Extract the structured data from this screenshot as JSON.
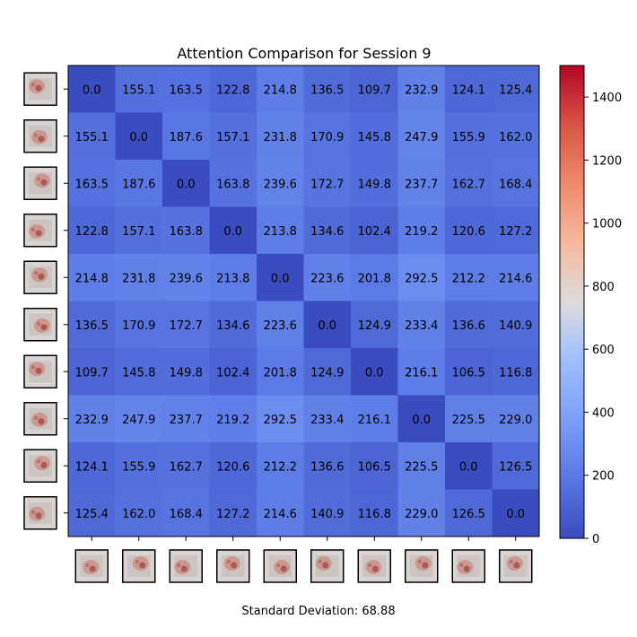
{
  "chart_data": {
    "type": "heatmap",
    "title": "Attention Comparison for Session 9",
    "footer": "Standard Deviation: 68.88",
    "matrix": [
      [
        0.0,
        155.1,
        163.5,
        122.8,
        214.8,
        136.5,
        109.7,
        232.9,
        124.1,
        125.4
      ],
      [
        155.1,
        0.0,
        187.6,
        157.1,
        231.8,
        170.9,
        145.8,
        247.9,
        155.9,
        162.0
      ],
      [
        163.5,
        187.6,
        0.0,
        163.8,
        239.6,
        172.7,
        149.8,
        237.7,
        162.7,
        168.4
      ],
      [
        122.8,
        157.1,
        163.8,
        0.0,
        213.8,
        134.6,
        102.4,
        219.2,
        120.6,
        127.2
      ],
      [
        214.8,
        231.8,
        239.6,
        213.8,
        0.0,
        223.6,
        201.8,
        292.5,
        212.2,
        214.6
      ],
      [
        136.5,
        170.9,
        172.7,
        134.6,
        223.6,
        0.0,
        124.9,
        233.4,
        136.6,
        140.9
      ],
      [
        109.7,
        145.8,
        149.8,
        102.4,
        201.8,
        124.9,
        0.0,
        216.1,
        106.5,
        116.8
      ],
      [
        232.9,
        247.9,
        237.7,
        219.2,
        292.5,
        233.4,
        216.1,
        0.0,
        225.5,
        229.0
      ],
      [
        124.1,
        155.9,
        162.7,
        120.6,
        212.2,
        136.6,
        106.5,
        225.5,
        0.0,
        126.5
      ],
      [
        125.4,
        162.0,
        168.4,
        127.2,
        214.6,
        140.9,
        116.8,
        229.0,
        126.5,
        0.0
      ]
    ],
    "color_scale": {
      "name": "coolwarm",
      "min": 0,
      "max": 1500
    },
    "colorbar_ticks": [
      0,
      200,
      400,
      600,
      800,
      1000,
      1200,
      1400
    ],
    "colorbar_tick_labels": [
      "0",
      "200",
      "400",
      "600",
      "800",
      "1000",
      "1200",
      "1400"
    ],
    "tick_images": "thumbnail images of attention maps (10 per axis)"
  }
}
